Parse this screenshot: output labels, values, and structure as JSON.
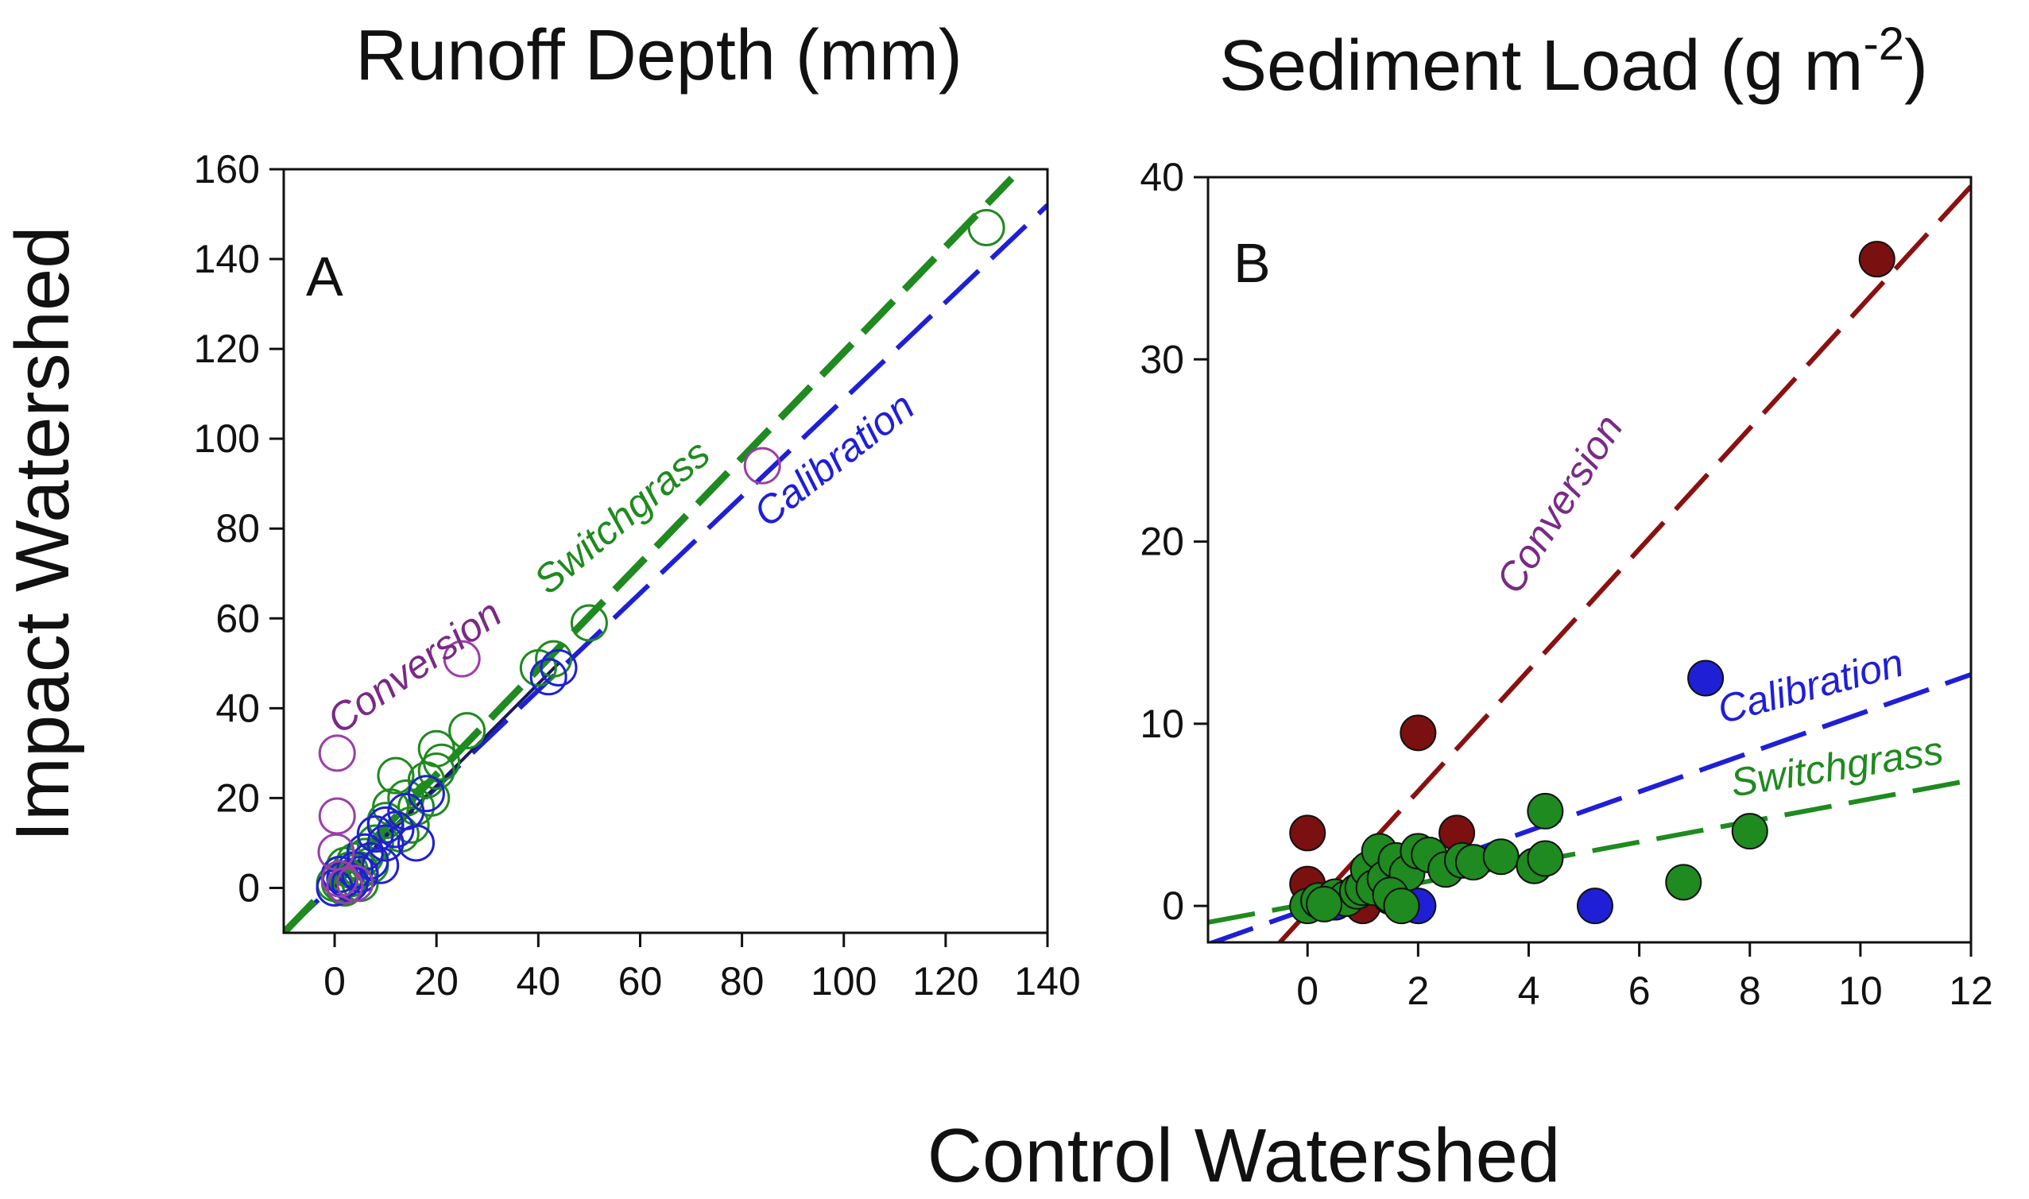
{
  "figure": {
    "shared_xlabel": "Control Watershed",
    "shared_ylabel": "Impact Watershed"
  },
  "colors": {
    "calibration": "#1f1fd6",
    "switchgrass": "#1f8a1f",
    "conversion_text": "#7a2a86",
    "conversion_line": "#8b1010",
    "conversion_points_a": "#9b3fa8",
    "conversion_points_b": "#7b1010"
  },
  "chart_data": [
    {
      "type": "scatter",
      "panel": "A",
      "title": "Runoff Depth (mm)",
      "xlim": [
        -10,
        140
      ],
      "ylim": [
        -10,
        160
      ],
      "xticks": [
        0,
        20,
        40,
        60,
        80,
        100,
        120,
        140
      ],
      "yticks": [
        0,
        20,
        40,
        60,
        80,
        100,
        120,
        140,
        160
      ],
      "marker": "open-circle",
      "series": [
        {
          "name": "Conversion",
          "color": "conversion_points_a",
          "points": [
            [
              0.5,
              30
            ],
            [
              0.5,
              16
            ],
            [
              0.3,
              8
            ],
            [
              25,
              51
            ],
            [
              84,
              94
            ],
            [
              1,
              2
            ],
            [
              2,
              0.5
            ],
            [
              4,
              1
            ]
          ]
        },
        {
          "name": "Calibration",
          "color": "calibration",
          "points": [
            [
              0,
              0
            ],
            [
              2,
              2
            ],
            [
              4,
              4
            ],
            [
              6,
              8
            ],
            [
              8,
              12
            ],
            [
              10,
              14
            ],
            [
              12,
              13
            ],
            [
              14,
              17
            ],
            [
              16,
              10
            ],
            [
              18,
              21
            ],
            [
              10,
              10
            ],
            [
              7,
              6
            ],
            [
              5,
              3
            ],
            [
              3,
              1
            ],
            [
              44,
              49
            ],
            [
              42,
              47
            ],
            [
              1,
              3
            ],
            [
              9,
              5
            ]
          ]
        },
        {
          "name": "Switchgrass",
          "color": "switchgrass",
          "points": [
            [
              0,
              1
            ],
            [
              1,
              3
            ],
            [
              2,
              5
            ],
            [
              3,
              2
            ],
            [
              4,
              6
            ],
            [
              5,
              4
            ],
            [
              6,
              7
            ],
            [
              8,
              10
            ],
            [
              10,
              15
            ],
            [
              12,
              25
            ],
            [
              14,
              20
            ],
            [
              16,
              18
            ],
            [
              18,
              24
            ],
            [
              20,
              26
            ],
            [
              20,
              31
            ],
            [
              21,
              28
            ],
            [
              26,
              35
            ],
            [
              40,
              49
            ],
            [
              43,
              51
            ],
            [
              50,
              59
            ],
            [
              128,
              147
            ],
            [
              1,
              1
            ],
            [
              2,
              0
            ],
            [
              3,
              4
            ],
            [
              5,
              1
            ],
            [
              7,
              5
            ],
            [
              11,
              18
            ],
            [
              15,
              14
            ],
            [
              19,
              20
            ],
            [
              13,
              12
            ]
          ]
        }
      ],
      "lines": [
        {
          "name": "Calibration",
          "color": "calibration",
          "dash": "long",
          "x": [
            -10,
            140
          ],
          "y": [
            -10,
            152
          ]
        },
        {
          "name": "Switchgrass",
          "color": "switchgrass",
          "dash": "long-thick",
          "x": [
            -10,
            133
          ],
          "y": [
            -10,
            158
          ]
        },
        {
          "name": "Conversion",
          "color": "conversion_line",
          "dash": "solid-dark",
          "x": [
            0,
            44
          ],
          "y": [
            0,
            50
          ]
        }
      ],
      "annotations": [
        {
          "text": "Conversion",
          "color": "conversion_text",
          "x": 1,
          "y": 34,
          "angle": -35
        },
        {
          "text": "Switchgrass",
          "color": "switchgrass",
          "x": 42,
          "y": 65,
          "angle": -40
        },
        {
          "text": "Calibration",
          "color": "calibration",
          "x": 85,
          "y": 80,
          "angle": -38
        }
      ]
    },
    {
      "type": "scatter",
      "panel": "B",
      "title": "Sediment Load (g m",
      "title_sup": "-2",
      "title_tail": ")",
      "xlim": [
        -1.8,
        12
      ],
      "ylim": [
        -2,
        40
      ],
      "xticks": [
        0,
        2,
        4,
        6,
        8,
        10,
        12
      ],
      "yticks": [
        0,
        10,
        20,
        30,
        40
      ],
      "marker": "filled-circle",
      "series": [
        {
          "name": "Conversion",
          "color": "conversion_points_b",
          "points": [
            [
              0,
              4
            ],
            [
              0,
              1.2
            ],
            [
              2,
              9.5
            ],
            [
              2.7,
              4
            ],
            [
              10.3,
              35.5
            ],
            [
              0.8,
              0.5
            ],
            [
              1.0,
              0
            ]
          ]
        },
        {
          "name": "Calibration",
          "color": "calibration",
          "points": [
            [
              2,
              0
            ],
            [
              5.2,
              0
            ],
            [
              7.2,
              12.5
            ],
            [
              0.5,
              0.2
            ],
            [
              1.5,
              0.5
            ]
          ]
        },
        {
          "name": "Switchgrass",
          "color": "switchgrass",
          "points": [
            [
              0,
              0
            ],
            [
              0.2,
              0.3
            ],
            [
              0.5,
              0.5
            ],
            [
              0.7,
              0.4
            ],
            [
              0.9,
              0.8
            ],
            [
              1.0,
              1.0
            ],
            [
              1.1,
              2
            ],
            [
              1.2,
              1
            ],
            [
              1.3,
              3
            ],
            [
              1.4,
              1.5
            ],
            [
              1.6,
              2.5
            ],
            [
              1.8,
              1.8
            ],
            [
              2.0,
              3
            ],
            [
              2.2,
              2.8
            ],
            [
              2.5,
              2
            ],
            [
              2.8,
              2.5
            ],
            [
              3.0,
              2.4
            ],
            [
              3.5,
              2.7
            ],
            [
              4.1,
              2.2
            ],
            [
              4.3,
              2.6
            ],
            [
              4.3,
              5.2
            ],
            [
              6.8,
              1.3
            ],
            [
              8.0,
              4.1
            ],
            [
              1.5,
              0.6
            ],
            [
              0.3,
              0.1
            ],
            [
              1.7,
              0
            ]
          ]
        }
      ],
      "lines": [
        {
          "name": "Conversion",
          "color": "conversion_line",
          "dash": "long",
          "x": [
            -0.5,
            12
          ],
          "y": [
            -2,
            39.5
          ]
        },
        {
          "name": "Calibration",
          "color": "calibration",
          "dash": "long",
          "x": [
            -1.8,
            12
          ],
          "y": [
            -2.1,
            12.7
          ]
        },
        {
          "name": "Switchgrass",
          "color": "switchgrass",
          "dash": "long",
          "x": [
            -1.8,
            12
          ],
          "y": [
            -0.9,
            6.9
          ]
        }
      ],
      "annotations": [
        {
          "text": "Conversion",
          "color": "conversion_text",
          "x": 3.8,
          "y": 17,
          "angle": -58
        },
        {
          "text": "Calibration",
          "color": "calibration",
          "x": 7.5,
          "y": 10,
          "angle": -15
        },
        {
          "text": "Switchgrass",
          "color": "switchgrass",
          "x": 7.7,
          "y": 6,
          "angle": -9
        }
      ]
    }
  ]
}
